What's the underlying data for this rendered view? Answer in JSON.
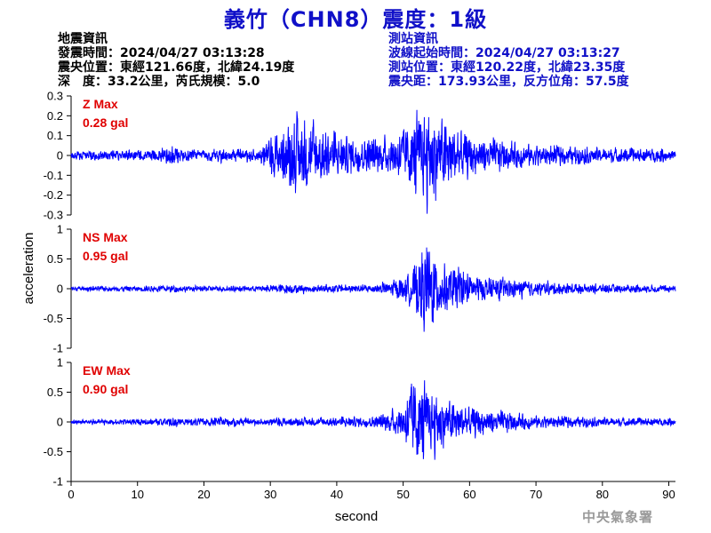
{
  "header": {
    "title": "義竹（CHN8）震度：1級"
  },
  "event_info": {
    "heading": "地震資訊",
    "origin_time": "發震時間：2024/04/27 03:13:28",
    "epicenter": "震央位置：東經121.66度，北緯24.19度",
    "depth_magnitude": "深　度：33.2公里，芮氏規模：5.0"
  },
  "station_info": {
    "heading": "測站資訊",
    "wave_start_time": "波線起始時間：2024/04/27 03:13:27",
    "station_location": "測站位置：東經120.22度，北緯23.35度",
    "distance_azimuth": "震央距：173.93公里，反方位角：57.5度"
  },
  "footer": {
    "agency": "中央氣象署"
  },
  "chart_data": {
    "type": "line",
    "xlabel": "second",
    "ylabel": "acceleration",
    "xlim": [
      0,
      91
    ],
    "x_ticks": [
      0,
      10,
      20,
      30,
      40,
      50,
      60,
      70,
      80,
      90
    ],
    "line_color": "#0000ff",
    "label_color": "#e00000",
    "grid": false,
    "panels": [
      {
        "component": "Z",
        "peak_label": "Z Max",
        "peak_value": "0.28 gal",
        "ylim": [
          -0.3,
          0.3
        ],
        "y_ticks": [
          -0.3,
          -0.2,
          -0.1,
          0,
          0.1,
          0.2,
          0.3
        ],
        "envelope": [
          [
            0,
            0.025
          ],
          [
            12,
            0.03
          ],
          [
            15,
            0.06
          ],
          [
            17,
            0.03
          ],
          [
            28,
            0.035
          ],
          [
            30,
            0.1
          ],
          [
            32,
            0.15
          ],
          [
            34,
            0.2
          ],
          [
            36,
            0.18
          ],
          [
            40,
            0.11
          ],
          [
            44,
            0.09
          ],
          [
            48,
            0.1
          ],
          [
            51,
            0.18
          ],
          [
            53,
            0.24
          ],
          [
            55,
            0.23
          ],
          [
            57,
            0.18
          ],
          [
            60,
            0.11
          ],
          [
            64,
            0.08
          ],
          [
            70,
            0.06
          ],
          [
            80,
            0.04
          ],
          [
            91,
            0.035
          ]
        ]
      },
      {
        "component": "NS",
        "peak_label": "NS Max",
        "peak_value": "0.95 gal",
        "ylim": [
          -1,
          1
        ],
        "y_ticks": [
          -1,
          -0.5,
          0,
          0.5,
          1
        ],
        "envelope": [
          [
            0,
            0.04
          ],
          [
            12,
            0.05
          ],
          [
            15,
            0.08
          ],
          [
            17,
            0.05
          ],
          [
            28,
            0.05
          ],
          [
            32,
            0.09
          ],
          [
            36,
            0.07
          ],
          [
            46,
            0.08
          ],
          [
            50,
            0.2
          ],
          [
            52,
            0.45
          ],
          [
            53.5,
            0.85
          ],
          [
            55,
            0.55
          ],
          [
            58,
            0.35
          ],
          [
            62,
            0.22
          ],
          [
            70,
            0.12
          ],
          [
            80,
            0.08
          ],
          [
            91,
            0.06
          ]
        ]
      },
      {
        "component": "EW",
        "peak_label": "EW Max",
        "peak_value": "0.90 gal",
        "ylim": [
          -1,
          1
        ],
        "y_ticks": [
          -1,
          -0.5,
          0,
          0.5,
          1
        ],
        "envelope": [
          [
            0,
            0.04
          ],
          [
            13,
            0.06
          ],
          [
            15,
            0.1
          ],
          [
            17,
            0.06
          ],
          [
            24,
            0.09
          ],
          [
            28,
            0.05
          ],
          [
            31,
            0.08
          ],
          [
            35,
            0.07
          ],
          [
            46,
            0.1
          ],
          [
            50,
            0.3
          ],
          [
            51.5,
            0.85
          ],
          [
            54,
            0.55
          ],
          [
            57,
            0.4
          ],
          [
            60,
            0.28
          ],
          [
            65,
            0.18
          ],
          [
            70,
            0.12
          ],
          [
            80,
            0.08
          ],
          [
            91,
            0.06
          ]
        ]
      }
    ]
  }
}
